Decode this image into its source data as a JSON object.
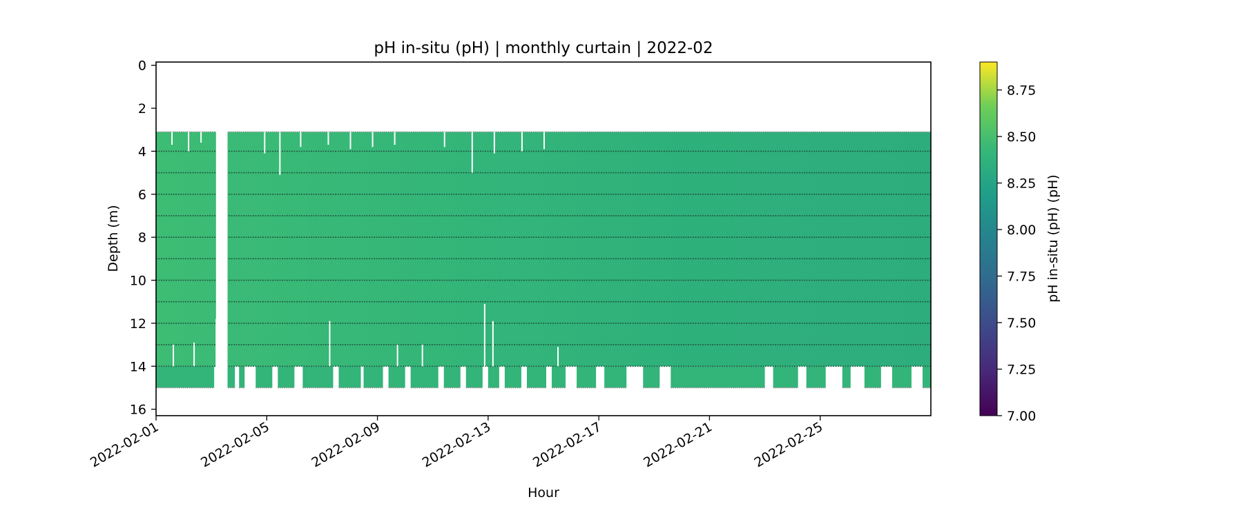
{
  "chart_data": {
    "type": "heatmap",
    "title": "pH in-situ (pH) | monthly curtain | 2022-02",
    "xlabel": "Hour",
    "ylabel": "Depth (m)",
    "x_range": [
      "2022-02-01",
      "2022-02-29"
    ],
    "x_ticks": [
      "2022-02-01",
      "2022-02-05",
      "2022-02-09",
      "2022-02-13",
      "2022-02-17",
      "2022-02-21",
      "2022-02-25"
    ],
    "ylim": [
      16.3,
      -0.15
    ],
    "y_ticks": [
      0,
      2,
      4,
      6,
      8,
      10,
      12,
      14,
      16
    ],
    "y_inverted": true,
    "colorbar": {
      "label": "pH in-situ (pH) (pH)",
      "range": [
        7.0,
        8.9
      ],
      "ticks": [
        "7.00",
        "7.25",
        "7.50",
        "7.75",
        "8.00",
        "8.25",
        "8.50",
        "8.75"
      ],
      "colormap": "viridis"
    },
    "field": {
      "top_depth": 3.1,
      "bottom_depth": 14.0,
      "sensor_depths": [
        4,
        5,
        6,
        7,
        8,
        9,
        10,
        11,
        12,
        13,
        14
      ],
      "typical_value_start": 8.32,
      "typical_value_end": 8.22,
      "gap_days": [
        [
          "2022-02-03T04:00",
          "2022-02-03T14:00"
        ]
      ],
      "deep_extension_depth": 15.0
    },
    "colors": {
      "field_mid": "#2fb07a",
      "sensor_line": "#1f4d3a",
      "edge_dots": "#888888",
      "frame": "#000000"
    }
  }
}
